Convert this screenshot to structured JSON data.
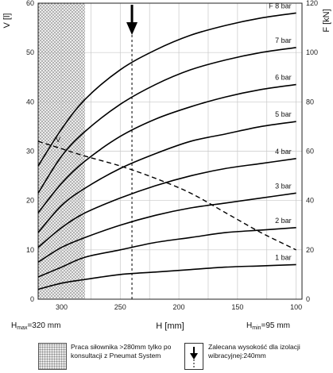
{
  "chart_data": {
    "type": "line",
    "xlabel": "H [mm]",
    "ylabel_left": "V [l]",
    "ylabel_right": "F [kN]",
    "x_reversed": true,
    "xlim": [
      320,
      95
    ],
    "ylim_left": [
      0,
      60
    ],
    "ylim_right": [
      0,
      120
    ],
    "x_ticks": [
      300,
      250,
      200,
      150,
      100
    ],
    "y_ticks_left": [
      0,
      10,
      20,
      30,
      40,
      50,
      60
    ],
    "y_ticks_right": [
      0,
      20,
      40,
      60,
      80,
      100,
      120
    ],
    "grid": true,
    "series": [
      {
        "name": "F 8 bar",
        "x": [
          320,
          300,
          280,
          250,
          220,
          190,
          160,
          130,
          100
        ],
        "y": [
          54,
          69,
          81,
          93,
          101,
          107,
          111,
          114,
          116
        ]
      },
      {
        "name": "7 bar",
        "x": [
          320,
          300,
          280,
          250,
          220,
          190,
          160,
          130,
          100
        ],
        "y": [
          43,
          58,
          68,
          79,
          87,
          93,
          97,
          100,
          102
        ]
      },
      {
        "name": "6 bar",
        "x": [
          320,
          300,
          280,
          250,
          220,
          190,
          160,
          130,
          100
        ],
        "y": [
          35,
          47,
          56,
          66,
          73,
          78,
          82,
          85,
          87
        ]
      },
      {
        "name": "5 bar",
        "x": [
          320,
          300,
          280,
          250,
          220,
          190,
          160,
          130,
          100
        ],
        "y": [
          27,
          38,
          45,
          53,
          59,
          64,
          67,
          70,
          72
        ]
      },
      {
        "name": "4 bar",
        "x": [
          320,
          300,
          280,
          250,
          220,
          190,
          160,
          130,
          100
        ],
        "y": [
          21,
          29,
          35,
          41,
          46,
          50,
          53,
          55,
          57
        ]
      },
      {
        "name": "3 bar",
        "x": [
          320,
          300,
          280,
          250,
          220,
          190,
          160,
          130,
          100
        ],
        "y": [
          15,
          21,
          25,
          30,
          34,
          37,
          39,
          41,
          43
        ]
      },
      {
        "name": "2 bar",
        "x": [
          320,
          300,
          280,
          250,
          220,
          190,
          160,
          130,
          100
        ],
        "y": [
          9,
          13,
          17,
          20,
          23,
          25,
          27,
          28,
          29
        ]
      },
      {
        "name": "1 bar",
        "x": [
          320,
          300,
          280,
          250,
          220,
          190,
          160,
          130,
          100
        ],
        "y": [
          4,
          6.5,
          8,
          10,
          11,
          12,
          13,
          13.5,
          14
        ]
      },
      {
        "name": "V",
        "axis": "left",
        "style": "dashed",
        "x": [
          320,
          300,
          280,
          250,
          220,
          190,
          160,
          130,
          100
        ],
        "y": [
          32,
          30.5,
          29,
          27,
          24.5,
          21.5,
          17.5,
          13.5,
          10
        ]
      }
    ],
    "annotations": {
      "hatched_region_x": [
        320,
        280
      ],
      "arrow_x": 240
    }
  },
  "h_max": {
    "prefix": "H",
    "sub": "max",
    "value": "=320 mm"
  },
  "h_min": {
    "prefix": "H",
    "sub": "min",
    "value": "=95 mm"
  },
  "legend": {
    "hatched_text": "Praca siłownika >280mm tylko po konsultacji z Pneumat System",
    "arrow_text": "Zalecana wysokość dla izolacji wibracyjnej:240mm"
  }
}
